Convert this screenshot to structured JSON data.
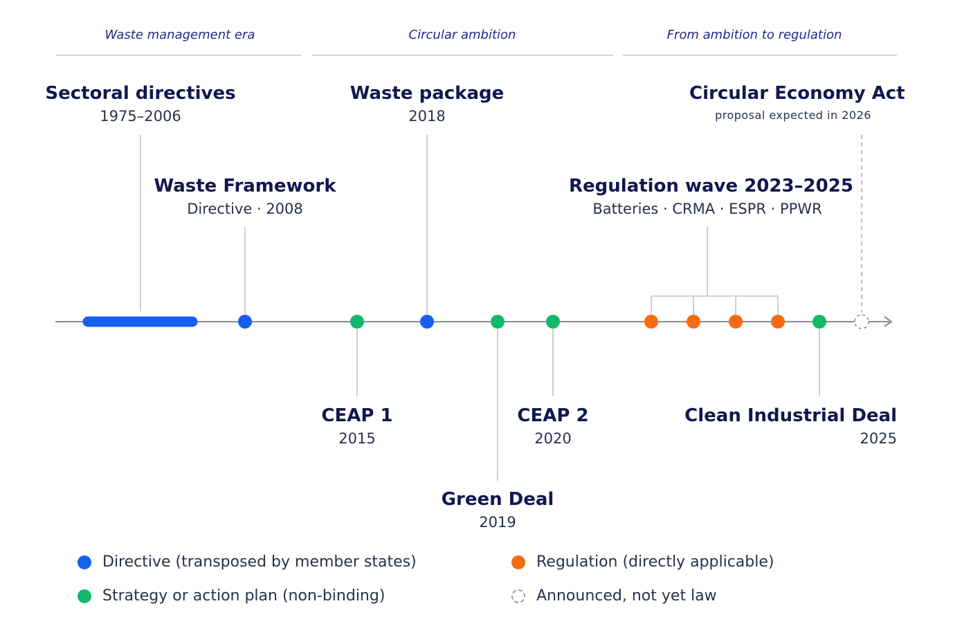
{
  "eras": [
    {
      "label": "Waste management era"
    },
    {
      "label": "Circular ambition"
    },
    {
      "label": "From ambition to regulation"
    }
  ],
  "events": {
    "sectoral": {
      "title": "Sectoral directives",
      "sub": "1975–2006"
    },
    "wfd": {
      "title": "Waste Framework",
      "sub": "Directive · 2008"
    },
    "waste_package": {
      "title": "Waste package",
      "sub": "2018"
    },
    "cea": {
      "title": "Circular Economy Act",
      "sub": "proposal expected in 2026"
    },
    "reg_wave": {
      "title": "Regulation wave 2023–2025",
      "sub": "Batteries · CRMA · ESPR · PPWR"
    },
    "ceap1": {
      "title": "CEAP 1",
      "sub": "2015"
    },
    "ceap2": {
      "title": "CEAP 2",
      "sub": "2020"
    },
    "green_deal": {
      "title": "Green Deal",
      "sub": "2019"
    },
    "cid": {
      "title": "Clean Industrial Deal",
      "sub": "2025"
    }
  },
  "legend": {
    "directive": "Directive (transposed by member states)",
    "strategy": "Strategy or action plan (non-binding)",
    "regulation": "Regulation (directly applicable)",
    "announced": "Announced, not yet law"
  },
  "colors": {
    "directive": "#1560f0",
    "strategy": "#13b86a",
    "regulation": "#f76b10",
    "announced": "#a0a0a0",
    "axis": "#8a8a8a",
    "connector": "#cfcfcf"
  }
}
